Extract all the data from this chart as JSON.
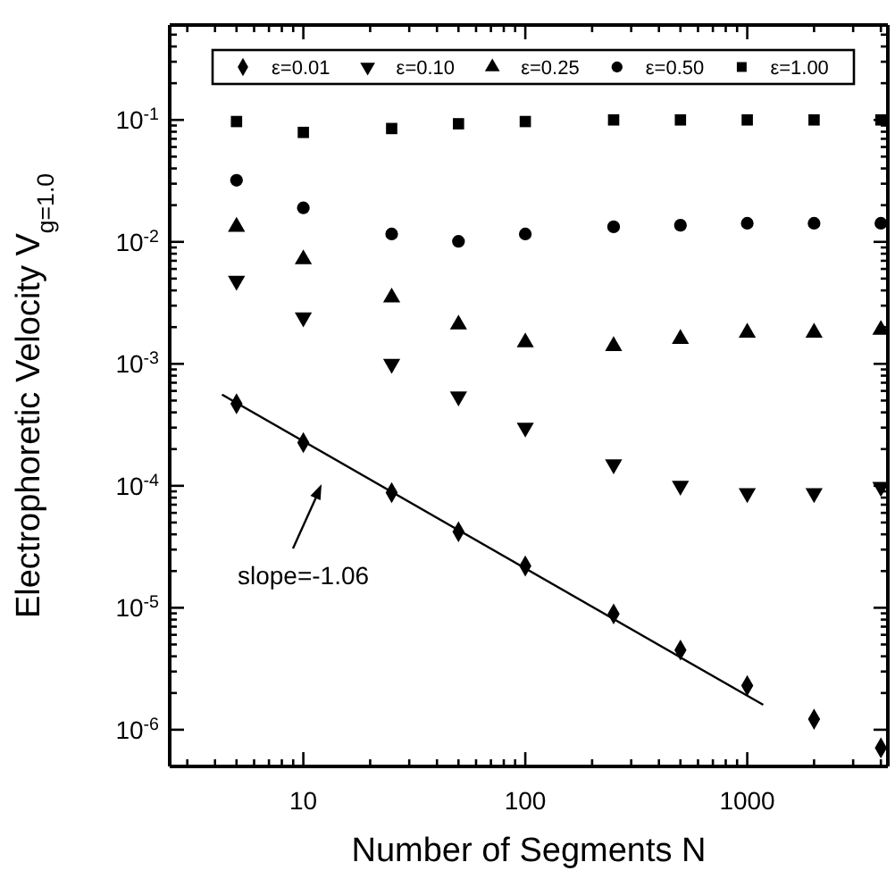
{
  "chart_data": {
    "type": "scatter",
    "xlabel": "Number of Segments N",
    "ylabel": "Electrophoretic Velocity V$_{g=1.0}$",
    "log": "xy",
    "legend": "top",
    "grid": false,
    "xlim": [
      2.5,
      4300
    ],
    "ylim": [
      5e-07,
      0.6
    ],
    "xticks": [
      {
        "value": 3,
        "label": null
      },
      {
        "value": 4,
        "label": null
      },
      {
        "value": 5,
        "label": null
      },
      {
        "value": 6,
        "label": null
      },
      {
        "value": 7,
        "label": null
      },
      {
        "value": 8,
        "label": null
      },
      {
        "value": 9,
        "label": null
      },
      10,
      {
        "value": 20,
        "label": null
      },
      {
        "value": 30,
        "label": null
      },
      {
        "value": 40,
        "label": null
      },
      {
        "value": 50,
        "label": null
      },
      {
        "value": 60,
        "label": null
      },
      {
        "value": 70,
        "label": null
      },
      {
        "value": 80,
        "label": null
      },
      {
        "value": 90,
        "label": null
      },
      100,
      {
        "value": 200,
        "label": null
      },
      {
        "value": 300,
        "label": null
      },
      {
        "value": 400,
        "label": null
      },
      {
        "value": 500,
        "label": null
      },
      {
        "value": 600,
        "label": null
      },
      {
        "value": 700,
        "label": null
      },
      {
        "value": 800,
        "label": null
      },
      {
        "value": 900,
        "label": null
      },
      1000,
      {
        "value": 2000,
        "label": null
      },
      {
        "value": 3000,
        "label": null
      },
      {
        "value": 4000,
        "label": null
      }
    ],
    "yticks": [
      {
        "value": 0.1,
        "label": "10$^{-1}$"
      },
      {
        "value": 0.01,
        "label": "10$^{-2}$"
      },
      {
        "value": 0.001,
        "label": "10$^{-3}$"
      },
      {
        "value": 0.0001,
        "label": "10$^{-4}$"
      },
      {
        "value": 1e-05,
        "label": "10$^{-5}$"
      },
      {
        "value": 1e-06,
        "label": "10$^{-6}$"
      },
      {
        "value": 0.2,
        "label": null
      },
      {
        "value": 0.3,
        "label": null
      },
      {
        "value": 0.4,
        "label": null
      },
      {
        "value": 0.5,
        "label": null
      },
      {
        "value": 0.02,
        "label": null
      },
      {
        "value": 0.03,
        "label": null
      },
      {
        "value": 0.04,
        "label": null
      },
      {
        "value": 0.05,
        "label": null
      },
      {
        "value": 0.06,
        "label": null
      },
      {
        "value": 0.07,
        "label": null
      },
      {
        "value": 0.08,
        "label": null
      },
      {
        "value": 0.09,
        "label": null
      },
      {
        "value": 0.002,
        "label": null
      },
      {
        "value": 0.003,
        "label": null
      },
      {
        "value": 0.004,
        "label": null
      },
      {
        "value": 0.005,
        "label": null
      },
      {
        "value": 0.006,
        "label": null
      },
      {
        "value": 0.007,
        "label": null
      },
      {
        "value": 0.008,
        "label": null
      },
      {
        "value": 0.009,
        "label": null
      },
      {
        "value": 0.0002,
        "label": null
      },
      {
        "value": 0.0003,
        "label": null
      },
      {
        "value": 0.0004,
        "label": null
      },
      {
        "value": 0.0005,
        "label": null
      },
      {
        "value": 0.0006,
        "label": null
      },
      {
        "value": 0.0007,
        "label": null
      },
      {
        "value": 0.0008,
        "label": null
      },
      {
        "value": 0.0009,
        "label": null
      },
      {
        "value": 2e-05,
        "label": null
      },
      {
        "value": 3e-05,
        "label": null
      },
      {
        "value": 4e-05,
        "label": null
      },
      {
        "value": 5e-05,
        "label": null
      },
      {
        "value": 6e-05,
        "label": null
      },
      {
        "value": 7e-05,
        "label": null
      },
      {
        "value": 8e-05,
        "label": null
      },
      {
        "value": 9e-05,
        "label": null
      },
      {
        "value": 2e-06,
        "label": null
      },
      {
        "value": 3e-06,
        "label": null
      },
      {
        "value": 4e-06,
        "label": null
      },
      {
        "value": 5e-06,
        "label": null
      },
      {
        "value": 6e-06,
        "label": null
      },
      {
        "value": 7e-06,
        "label": null
      },
      {
        "value": 8e-06,
        "label": null
      },
      {
        "value": 9e-06,
        "label": null
      }
    ],
    "x": [
      5,
      10,
      25,
      50,
      100,
      250,
      500,
      1000,
      2000,
      4000
    ],
    "series": [
      {
        "name": "ε=0.01",
        "color": "#000000",
        "marker": "diamond",
        "values": [
          0.00047,
          0.000226,
          8.8e-05,
          4.2e-05,
          2.2e-05,
          8.9e-06,
          4.5e-06,
          2.3e-06,
          1.22e-06,
          7.1e-07
        ]
      },
      {
        "name": "ε=0.10",
        "color": "#000000",
        "marker": "triangle-down",
        "values": [
          0.0048,
          0.0024,
          0.001,
          0.00054,
          0.0003,
          0.00015,
          0.0001,
          8.7e-05,
          8.7e-05,
          9.8e-05
        ]
      },
      {
        "name": "ε=0.25",
        "color": "#000000",
        "marker": "triangle",
        "values": [
          0.0133,
          0.0072,
          0.0035,
          0.0021,
          0.0015,
          0.0014,
          0.0016,
          0.0018,
          0.0018,
          0.0019
        ]
      },
      {
        "name": "ε=0.50",
        "color": "#000000",
        "marker": "circle",
        "values": [
          0.032,
          0.019,
          0.0116,
          0.0101,
          0.0116,
          0.0133,
          0.0137,
          0.0142,
          0.0142,
          0.0142
        ]
      },
      {
        "name": "ε=1.00",
        "color": "#000000",
        "marker": "square",
        "values": [
          0.097,
          0.079,
          0.085,
          0.093,
          0.097,
          0.1,
          0.1,
          0.1,
          0.1,
          0.1
        ]
      },
      {
        "type": "line",
        "color": "#000000",
        "marker": "none",
        "x": [
          4.3,
          1180
        ],
        "values": [
          0.00056,
          1.6e-06
        ]
      }
    ],
    "annotations": [
      "slope=-1.06"
    ]
  }
}
